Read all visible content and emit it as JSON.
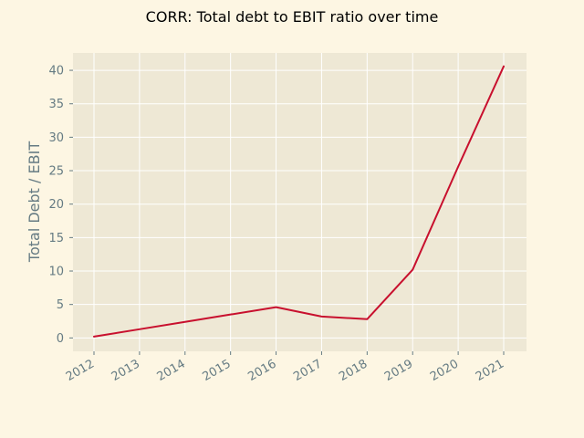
{
  "chart_data": {
    "type": "line",
    "title": "CORR: Total debt to EBIT ratio over time",
    "xlabel": "",
    "ylabel": "Total Debt / EBIT",
    "x": [
      "2012",
      "2013",
      "2014",
      "2015",
      "2016",
      "2017",
      "2018",
      "2019",
      "2020",
      "2021"
    ],
    "series": [
      {
        "values": [
          0.2,
          1.3,
          2.4,
          3.5,
          4.6,
          3.2,
          2.8,
          10.2,
          25.6,
          40.6
        ]
      }
    ],
    "yticks": [
      0,
      5,
      10,
      15,
      20,
      25,
      30,
      35,
      40
    ],
    "ylim": [
      -2,
      42.6
    ],
    "grid": true,
    "legend": "none",
    "colors": {
      "figure_background": "#fdf6e3",
      "plot_background": "#eee8d5",
      "grid": "#ffffff",
      "line": "#c8102e",
      "tick_text": "#657b83",
      "title_text": "#000000"
    }
  }
}
